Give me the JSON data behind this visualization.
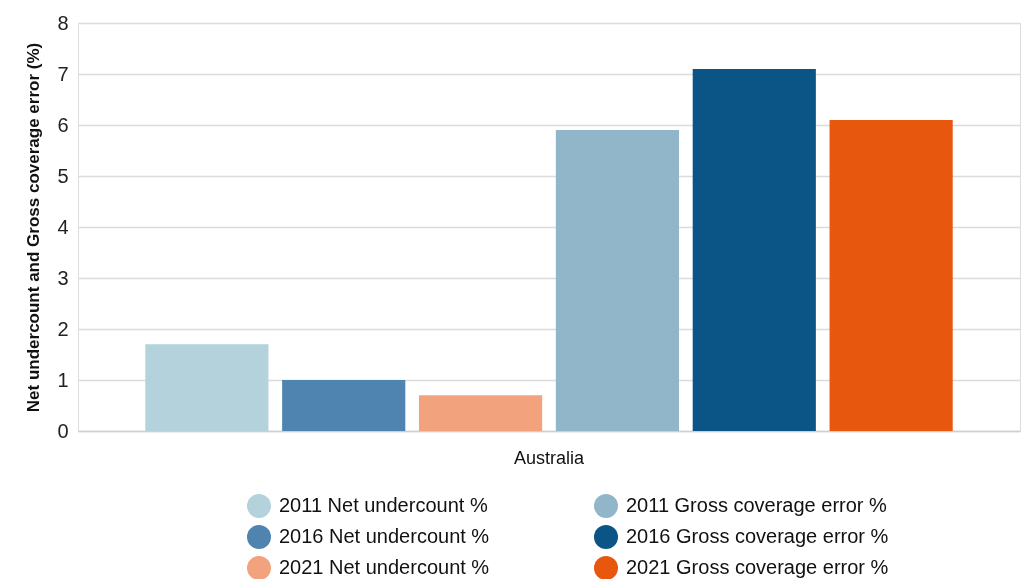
{
  "chart_data": {
    "type": "bar",
    "ylabel": "Net undercount and Gross coverage error (%)",
    "categories": [
      "Australia"
    ],
    "series": [
      {
        "name": "2011 Net undercount %",
        "color": "#b4d2dc",
        "values": [
          1.7
        ]
      },
      {
        "name": "2016 Net undercount %",
        "color": "#4f84b0",
        "values": [
          1.0
        ]
      },
      {
        "name": "2021 Net undercount %",
        "color": "#f2a27c",
        "values": [
          0.7
        ]
      },
      {
        "name": "2011 Gross coverage error %",
        "color": "#91b6c9",
        "values": [
          5.9
        ]
      },
      {
        "name": "2016 Gross coverage error %",
        "color": "#0a5486",
        "values": [
          7.1
        ]
      },
      {
        "name": "2021 Gross coverage error %",
        "color": "#e8570e",
        "values": [
          6.1
        ]
      }
    ],
    "ylim": [
      0,
      8
    ],
    "yticks": [
      0,
      1,
      2,
      3,
      4,
      5,
      6,
      7,
      8
    ],
    "grid": "y",
    "legend": "bottom"
  }
}
